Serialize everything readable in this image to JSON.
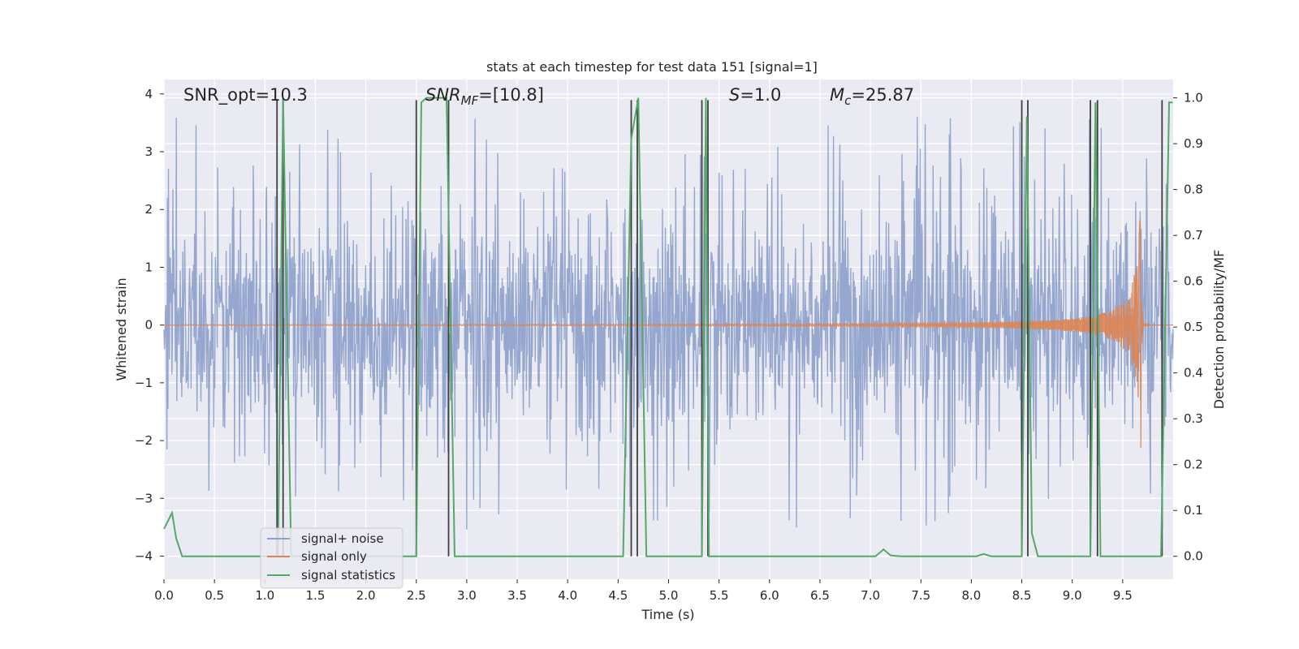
{
  "chart_data": {
    "type": "line",
    "title": "stats at each timestep for test data 151 [signal=1]",
    "xlabel": "Time (s)",
    "ylabel_left": "Whitened strain",
    "ylabel_right": "Detection probability/MF",
    "xlim": [
      0.0,
      10.0
    ],
    "ylim_left": [
      -4.4,
      4.25
    ],
    "ylim_right": [
      -0.05,
      1.04
    ],
    "grid": true,
    "legend_placement": "lower-left",
    "x_ticks": [
      0.0,
      0.5,
      1.0,
      1.5,
      2.0,
      2.5,
      3.0,
      3.5,
      4.0,
      4.5,
      5.0,
      5.5,
      6.0,
      6.5,
      7.0,
      7.5,
      8.0,
      8.5,
      9.0,
      9.5
    ],
    "x_tick_labels": [
      "0.0",
      "0.5",
      "1.0",
      "1.5",
      "2.0",
      "2.5",
      "3.0",
      "3.5",
      "4.0",
      "4.5",
      "5.0",
      "5.5",
      "6.0",
      "6.5",
      "7.0",
      "7.5",
      "8.0",
      "8.5",
      "9.0",
      "9.5"
    ],
    "y_left_ticks": [
      4,
      3,
      2,
      1,
      0,
      -1,
      -2,
      -3,
      -4
    ],
    "y_left_tick_labels": [
      "4",
      "3",
      "2",
      "1",
      "0",
      "−1",
      "−2",
      "−3",
      "−4"
    ],
    "y_right_ticks": [
      1.0,
      0.9,
      0.8,
      0.7,
      0.6,
      0.5,
      0.4,
      0.3,
      0.2,
      0.1,
      0.0
    ],
    "y_right_tick_labels": [
      "1.0",
      "0.9",
      "0.8",
      "0.7",
      "0.6",
      "0.5",
      "0.4",
      "0.3",
      "0.2",
      "0.1",
      "0.0"
    ],
    "annotations": {
      "snr_opt": "SNR_opt=10.3",
      "snr_mf_name": "SNR",
      "snr_mf_sub": "MF",
      "snr_mf_value": "=[10.8]",
      "s_name": "S",
      "s_value": "=1.0",
      "mc_name": "M",
      "mc_sub": "c",
      "mc_value": "=25.87"
    },
    "legend": [
      {
        "label": "signal+ noise",
        "color": "#8da0cb"
      },
      {
        "label": "signal only",
        "color": "#dd8452"
      },
      {
        "label": "signal statistics",
        "color": "#55a868"
      }
    ],
    "series": [
      {
        "name": "signal+ noise",
        "axis": "left",
        "color": "#8da0cb",
        "note_type": "noise",
        "band_sigma": 1.0,
        "peak_envelope": 3.0,
        "n_samples": 2048
      },
      {
        "name": "signal only",
        "axis": "left",
        "color": "#dd8452",
        "note_type": "chirp",
        "merger_time": 9.68,
        "peak_amplitude": 2.2
      },
      {
        "name": "signal statistics",
        "axis": "right",
        "color": "#55a868",
        "x": [
          0.0,
          0.08,
          0.12,
          0.18,
          0.25,
          1.1,
          1.13,
          1.18,
          1.22,
          1.26,
          2.5,
          2.55,
          2.6,
          2.8,
          2.88,
          2.95,
          4.55,
          4.63,
          4.7,
          4.78,
          5.3,
          5.33,
          5.37,
          5.4,
          5.5,
          7.05,
          7.13,
          7.2,
          7.3,
          8.05,
          8.12,
          8.2,
          8.5,
          8.55,
          8.6,
          8.66,
          8.75,
          9.18,
          9.23,
          9.28,
          9.32,
          9.88,
          9.92,
          9.96,
          9.995
        ],
        "y": [
          0.06,
          0.095,
          0.04,
          0.0,
          0.0,
          0.0,
          0.0,
          1.0,
          0.5,
          0.0,
          0.0,
          0.99,
          1.0,
          1.0,
          0.0,
          0.0,
          0.0,
          0.91,
          1.0,
          0.0,
          0.0,
          0.0,
          1.0,
          0.0,
          0.0,
          0.0,
          0.015,
          0.002,
          0.0,
          0.0,
          0.005,
          0.0,
          0.0,
          0.96,
          0.05,
          0.0,
          0.0,
          0.0,
          0.99,
          0.0,
          0.0,
          0.0,
          0.5,
          0.99,
          0.99
        ]
      }
    ],
    "vertical_markers": {
      "color": "#404040",
      "x": [
        1.12,
        1.18,
        2.5,
        2.82,
        4.63,
        4.69,
        5.33,
        5.39,
        8.5,
        8.56,
        9.18,
        9.25,
        9.89
      ]
    }
  },
  "colors": {
    "axes_bg": "#eaeaf2",
    "grid": "#ffffff",
    "noise": "#8da0cb",
    "signal": "#dd8452",
    "stats": "#55a868",
    "marker": "#404040"
  }
}
